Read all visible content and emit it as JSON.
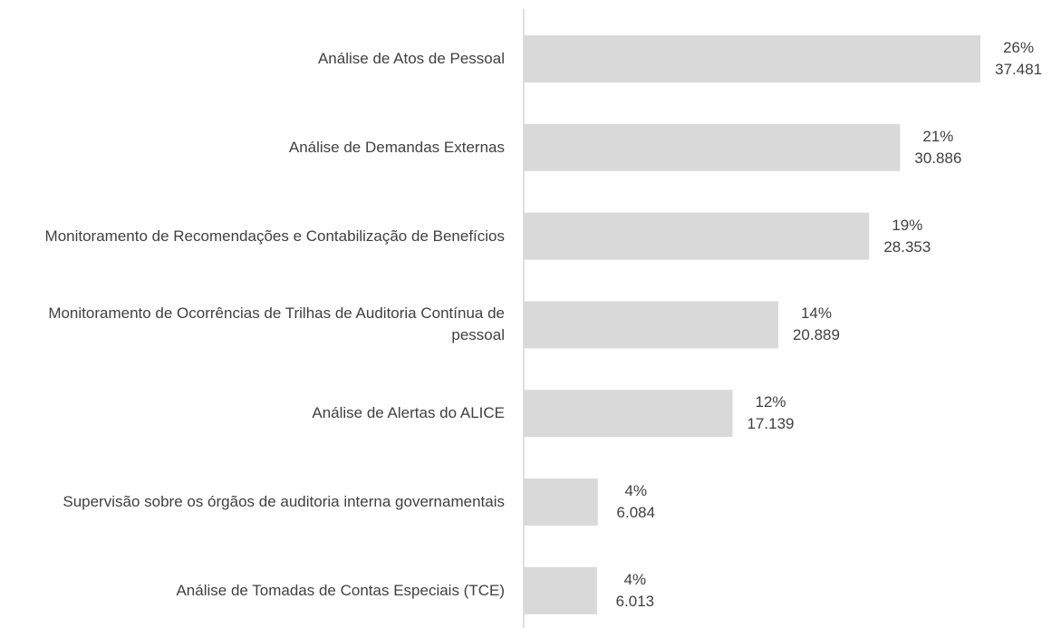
{
  "chart_data": {
    "type": "barh",
    "categories": [
      "Análise de Atos de Pessoal",
      "Análise de Demandas Externas",
      "Monitoramento de Recomendações e Contabilização de Benefícios",
      "Monitoramento de Ocorrências de Trilhas de Auditoria Contínua de pessoal",
      "Análise de Alertas do ALICE",
      "Supervisão sobre os órgãos de auditoria interna governamentais",
      "Análise de Tomadas de Contas Especiais (TCE)"
    ],
    "values": [
      37481,
      30886,
      28353,
      20889,
      17139,
      6084,
      6013
    ],
    "value_labels": [
      "37.481",
      "30.886",
      "28.353",
      "20.889",
      "17.139",
      "6.084",
      "6.013"
    ],
    "share_labels": [
      "26%",
      "21%",
      "19%",
      "14%",
      "12%",
      "4%",
      "4%"
    ],
    "color": "#d9d9d9",
    "xlim": [
      0,
      40000
    ]
  }
}
